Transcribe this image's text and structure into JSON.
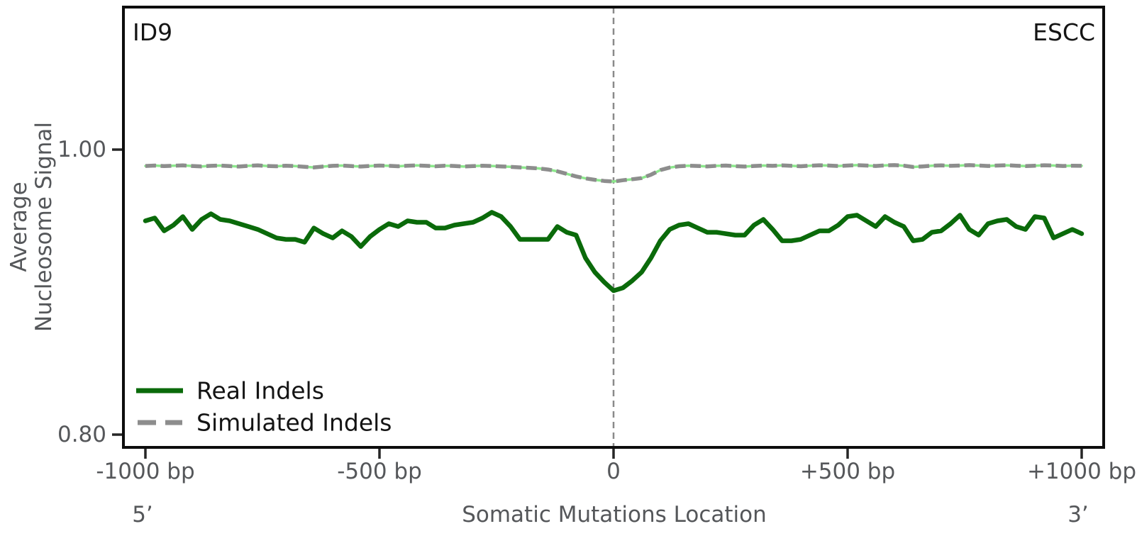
{
  "figure": {
    "panel_label_left": "ID9",
    "panel_label_right": "ESCC"
  },
  "axes": {
    "ylabel_line1": "Average",
    "ylabel_line2": "Nucleosome Signal",
    "xlabel": "Somatic Mutations Location",
    "x_end_label_left": "5’",
    "x_end_label_right": "3’",
    "yticks": [
      {
        "value": 1.0,
        "label": "1.00"
      },
      {
        "value": 0.8,
        "label": "0.80"
      }
    ],
    "xticks": [
      {
        "bp": -1000,
        "label": "-1000 bp"
      },
      {
        "bp": -500,
        "label": "-500 bp"
      },
      {
        "bp": 0,
        "label": "0"
      },
      {
        "bp": 500,
        "label": "+500 bp"
      },
      {
        "bp": 1000,
        "label": "+1000 bp"
      }
    ]
  },
  "legend": {
    "items": [
      {
        "label": "Real Indels",
        "color": "#0a6a0a",
        "style": "solid"
      },
      {
        "label": "Simulated Indels",
        "color": "#8d8d8d",
        "style": "dashed"
      }
    ]
  },
  "colors": {
    "spine": "#0d0d0d",
    "tick_mark": "#262626",
    "text_gray": "#55575a",
    "text_dark": "#141414",
    "real_line": "#0a6a0a",
    "simulated_line": "#8d8d8d",
    "simulated_underlay": "#8ce98c",
    "zero_line": "#8a8a8a",
    "background": "#ffffff"
  },
  "chart_data": {
    "type": "line",
    "title": "",
    "xlabel": "Somatic Mutations Location",
    "ylabel": "Average Nucleosome Signal",
    "xlim": [
      -1050,
      1050
    ],
    "ylim": [
      0.79,
      1.1
    ],
    "grid": false,
    "legend_position": "lower left",
    "vline_x": 0,
    "x_units": "bp",
    "x": [
      -1000,
      -980,
      -960,
      -940,
      -920,
      -900,
      -880,
      -860,
      -840,
      -820,
      -800,
      -780,
      -760,
      -740,
      -720,
      -700,
      -680,
      -660,
      -640,
      -620,
      -600,
      -580,
      -560,
      -540,
      -520,
      -500,
      -480,
      -460,
      -440,
      -420,
      -400,
      -380,
      -360,
      -340,
      -320,
      -300,
      -280,
      -260,
      -240,
      -220,
      -200,
      -180,
      -160,
      -140,
      -120,
      -100,
      -80,
      -60,
      -40,
      -20,
      0,
      20,
      40,
      60,
      80,
      100,
      120,
      140,
      160,
      180,
      200,
      220,
      240,
      260,
      280,
      300,
      320,
      340,
      360,
      380,
      400,
      420,
      440,
      460,
      480,
      500,
      520,
      540,
      560,
      580,
      600,
      620,
      640,
      660,
      680,
      700,
      720,
      740,
      760,
      780,
      800,
      820,
      840,
      860,
      880,
      900,
      920,
      940,
      960,
      980,
      1000
    ],
    "series": [
      {
        "name": "Real Indels",
        "color": "#0a6a0a",
        "style": "solid",
        "values": [
          0.95,
          0.952,
          0.943,
          0.947,
          0.953,
          0.944,
          0.951,
          0.955,
          0.951,
          0.95,
          0.948,
          0.946,
          0.944,
          0.941,
          0.938,
          0.937,
          0.937,
          0.935,
          0.945,
          0.941,
          0.938,
          0.943,
          0.939,
          0.932,
          0.939,
          0.944,
          0.948,
          0.946,
          0.95,
          0.949,
          0.949,
          0.945,
          0.945,
          0.947,
          0.948,
          0.949,
          0.952,
          0.956,
          0.953,
          0.946,
          0.937,
          0.937,
          0.937,
          0.937,
          0.946,
          0.942,
          0.94,
          0.924,
          0.914,
          0.907,
          0.901,
          0.903,
          0.908,
          0.914,
          0.924,
          0.936,
          0.944,
          0.947,
          0.948,
          0.945,
          0.942,
          0.942,
          0.941,
          0.94,
          0.94,
          0.947,
          0.951,
          0.944,
          0.936,
          0.936,
          0.937,
          0.94,
          0.943,
          0.943,
          0.947,
          0.953,
          0.954,
          0.95,
          0.946,
          0.953,
          0.949,
          0.946,
          0.936,
          0.937,
          0.942,
          0.943,
          0.948,
          0.954,
          0.944,
          0.94,
          0.948,
          0.95,
          0.951,
          0.946,
          0.944,
          0.953,
          0.952,
          0.938,
          0.941,
          0.944,
          0.941
        ]
      },
      {
        "name": "Simulated Indels",
        "color": "#8d8d8d",
        "style": "dashed",
        "underlay_color": "#8ce98c",
        "values": [
          0.9885,
          0.9888,
          0.9884,
          0.9887,
          0.9889,
          0.9885,
          0.9882,
          0.9886,
          0.9888,
          0.9884,
          0.9881,
          0.9886,
          0.9889,
          0.9885,
          0.9883,
          0.9887,
          0.9884,
          0.9879,
          0.9875,
          0.9881,
          0.9886,
          0.9888,
          0.9884,
          0.9881,
          0.9885,
          0.9888,
          0.9886,
          0.9883,
          0.9887,
          0.9889,
          0.9886,
          0.9883,
          0.9887,
          0.9885,
          0.9881,
          0.9884,
          0.9887,
          0.9885,
          0.9882,
          0.9879,
          0.9875,
          0.9872,
          0.9868,
          0.986,
          0.9848,
          0.983,
          0.9812,
          0.9798,
          0.9788,
          0.978,
          0.9776,
          0.9785,
          0.9792,
          0.98,
          0.9824,
          0.9856,
          0.9874,
          0.9883,
          0.9887,
          0.9885,
          0.9882,
          0.9886,
          0.9888,
          0.9884,
          0.9881,
          0.9885,
          0.9888,
          0.9886,
          0.9889,
          0.9886,
          0.9883,
          0.9887,
          0.989,
          0.9888,
          0.9885,
          0.9888,
          0.9891,
          0.9888,
          0.9885,
          0.9889,
          0.9891,
          0.9887,
          0.9878,
          0.9882,
          0.9887,
          0.9889,
          0.9886,
          0.9888,
          0.9891,
          0.9888,
          0.9885,
          0.9888,
          0.989,
          0.9887,
          0.9884,
          0.9887,
          0.989,
          0.9888,
          0.9885,
          0.9887,
          0.9886
        ]
      }
    ]
  }
}
